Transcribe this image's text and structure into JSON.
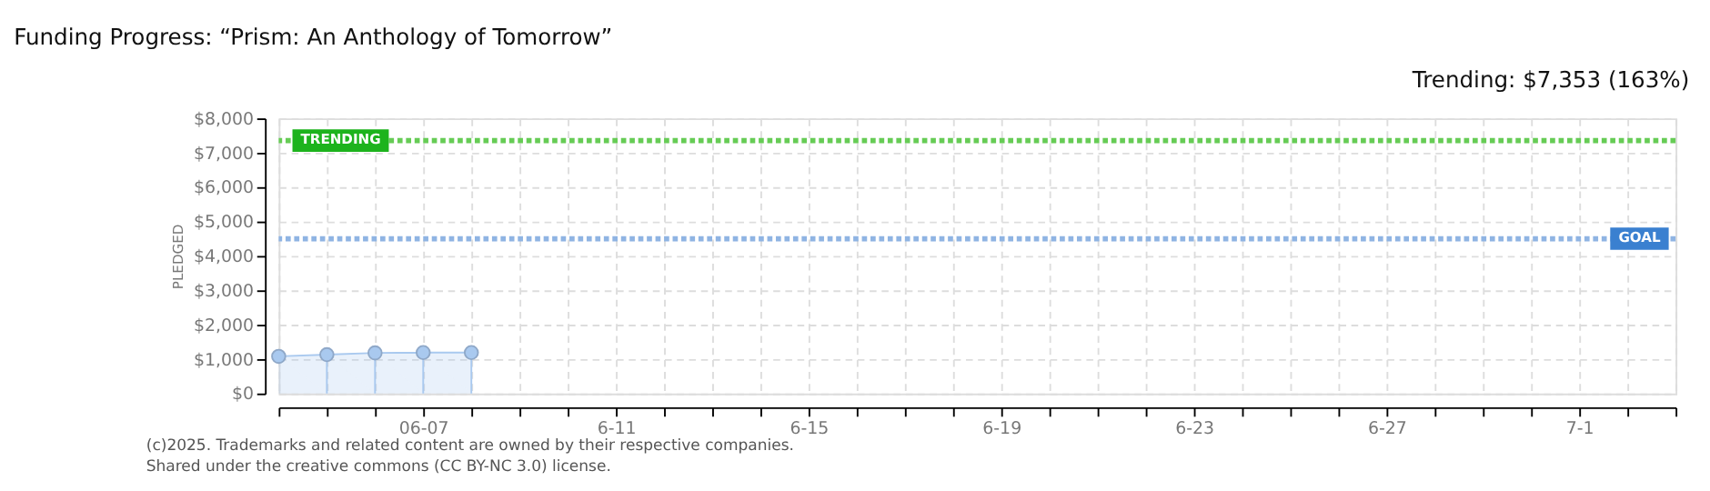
{
  "chart_data": {
    "type": "area",
    "title": "Funding Progress: “Prism: An Anthology of Tomorrow”",
    "ylabel": "PLEDGED",
    "x": [
      "--06-04",
      "--06-05",
      "--06-06",
      "--06-07",
      "--06-08"
    ],
    "series": [
      {
        "color": "#a9c9ef",
        "values": [
          1080,
          1130,
          1180,
          1190,
          1190
        ]
      }
    ],
    "xlim": [
      "--06-04",
      "--07-03"
    ],
    "xticks": [
      {
        "value": "--06-04",
        "label": null
      },
      {
        "value": "--06-05",
        "label": null
      },
      {
        "value": "--06-06",
        "label": null
      },
      {
        "value": "--06-07",
        "label": "06-07"
      },
      {
        "value": "--06-08",
        "label": null
      },
      {
        "value": "--06-09",
        "label": null
      },
      {
        "value": "--06-10",
        "label": null
      },
      {
        "value": "--06-11",
        "label": "6-11"
      },
      {
        "value": "--06-12",
        "label": null
      },
      {
        "value": "--06-13",
        "label": null
      },
      {
        "value": "--06-14",
        "label": null
      },
      {
        "value": "--06-15",
        "label": "6-15"
      },
      {
        "value": "--06-16",
        "label": null
      },
      {
        "value": "--06-17",
        "label": null
      },
      {
        "value": "--06-18",
        "label": null
      },
      {
        "value": "--06-19",
        "label": "6-19"
      },
      {
        "value": "--06-20",
        "label": null
      },
      {
        "value": "--06-21",
        "label": null
      },
      {
        "value": "--06-22",
        "label": null
      },
      {
        "value": "--06-23",
        "label": "6-23"
      },
      {
        "value": "--06-24",
        "label": null
      },
      {
        "value": "--06-25",
        "label": null
      },
      {
        "value": "--06-26",
        "label": null
      },
      {
        "value": "--06-27",
        "label": "6-27"
      },
      {
        "value": "--06-28",
        "label": null
      },
      {
        "value": "--06-29",
        "label": null
      },
      {
        "value": "--06-30",
        "label": null
      },
      {
        "value": "--07-01",
        "label": "7-1"
      },
      {
        "value": "--07-02",
        "label": null
      },
      {
        "value": "--07-03",
        "label": null
      }
    ],
    "ylim": [
      0,
      8000
    ],
    "yticks": [
      {
        "value": 0,
        "label": "$0"
      },
      {
        "value": 1000,
        "label": "$1,000"
      },
      {
        "value": 2000,
        "label": "$2,000"
      },
      {
        "value": 3000,
        "label": "$3,000"
      },
      {
        "value": 4000,
        "label": "$4,000"
      },
      {
        "value": 5000,
        "label": "$5,000"
      },
      {
        "value": 6000,
        "label": "$6,000"
      },
      {
        "value": 7000,
        "label": "$7,000"
      },
      {
        "value": 8000,
        "label": "$8,000"
      }
    ],
    "ref_lines": [
      {
        "axis": "y",
        "value": 7353,
        "label": "TRENDING",
        "color": "#66cc55",
        "line_style": "dotted"
      },
      {
        "axis": "y",
        "value": 4500,
        "label": "GOAL",
        "color": "#8fb4e3",
        "line_style": "dotted"
      }
    ],
    "annotations": [
      "Trending: $7,353 (163%)",
      "(c)2025. Trademarks and related content are owned by their respective companies.",
      "Shared under the creative commons (CC BY-NC 3.0) license."
    ],
    "grid": true,
    "marker": "circle",
    "legend": false
  }
}
